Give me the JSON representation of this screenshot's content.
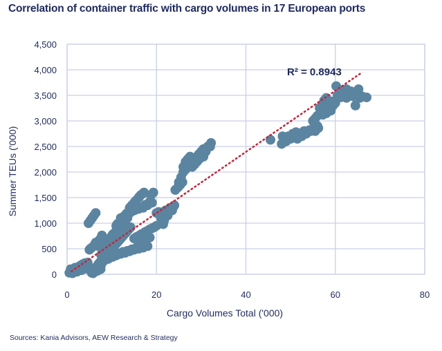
{
  "chart_data": {
    "type": "scatter",
    "title": "Correlation of container traffic with cargo volumes in 17 European ports",
    "xlabel": "Cargo Volumes Total ('000)",
    "ylabel": "Summer TEUs ('000)",
    "xlim": [
      0,
      80
    ],
    "ylim": [
      0,
      4500
    ],
    "xticks": [
      0,
      20,
      40,
      60,
      80
    ],
    "xtick_labels": [
      "0",
      "20",
      "40",
      "60",
      "80"
    ],
    "yticks": [
      0,
      500,
      1000,
      1500,
      2000,
      2500,
      3000,
      3500,
      4000,
      4500
    ],
    "ytick_labels": [
      "0",
      "500",
      "1,000",
      "1,500",
      "2,000",
      "2,500",
      "3,000",
      "3,500",
      "4,000",
      "4,500"
    ],
    "grid": true,
    "r2_label": "R² = 0.8943",
    "trendline": {
      "x": [
        1,
        66
      ],
      "y": [
        60,
        3950
      ]
    },
    "source": "Sources: Kania Advisors, AEW Research & Strategy",
    "colors": {
      "points": "#5b84a0",
      "trendline": "#c0283c",
      "grid": "#c9cfe6",
      "text": "#1f2a5c"
    },
    "series": [
      {
        "x": [
          0.5,
          1,
          1.5,
          2,
          2.5,
          3,
          3.5,
          4,
          1.2,
          2.2,
          3.2,
          4.2,
          5,
          0.8,
          1.8,
          2.8,
          3.8,
          4.6,
          5.5,
          6,
          6.5,
          7,
          7.5,
          5.8,
          6.2,
          6.8,
          7.2,
          5.4,
          6.6,
          7.6,
          5,
          5.5,
          6,
          6.5,
          7,
          7.5,
          8,
          5.2,
          6.4,
          7.8,
          7,
          7.5,
          8,
          8.5,
          9,
          9.5,
          10,
          10.5,
          7.2,
          8.2,
          9.2,
          10.2,
          7.6,
          8.6,
          9.6,
          10,
          10.5,
          11,
          11.5,
          12,
          12.5,
          13,
          13.5,
          14,
          10.2,
          11.2,
          12.2,
          13.2,
          14.2,
          10.8,
          11.8,
          12.8,
          13.8,
          11,
          11.5,
          12,
          12.5,
          13,
          13.5,
          14,
          11.2,
          12.2,
          13.2,
          14.2,
          14,
          14.5,
          15,
          15.5,
          16,
          16.5,
          17,
          14.2,
          15.2,
          16.2,
          17.2,
          8,
          9,
          10,
          11,
          12,
          13,
          14,
          15,
          16,
          17,
          18,
          8.5,
          9.5,
          10.5,
          11.5,
          12.5,
          13.5,
          14.5,
          15.5,
          16.5,
          17.5,
          7,
          8,
          9,
          10,
          11,
          12,
          7.5,
          8.5,
          9.5,
          10.5,
          11.5,
          10,
          10.5,
          11,
          11.5,
          12,
          12.5,
          13,
          13.5,
          10.2,
          11.2,
          12.2,
          13.2,
          16,
          17,
          18,
          16.5,
          17.5,
          18.5,
          16.2,
          17.2,
          18.2,
          4.8,
          5.2,
          5.6,
          6,
          6.4,
          12,
          13,
          14,
          15,
          16,
          17,
          18,
          19,
          12.5,
          13.5,
          14.5,
          15.5,
          16.5,
          17.5,
          18.5,
          18.8,
          19.3,
          15,
          16,
          17,
          18,
          19,
          20,
          15.5,
          16.5,
          17.5,
          18.5,
          19.5,
          20,
          21,
          21.5,
          22,
          22.5,
          23,
          23.5,
          24,
          20.5,
          21.8,
          22.8,
          23.8,
          21.7,
          25,
          25.5,
          26,
          26.5,
          27,
          27.5,
          28,
          28.5,
          29,
          29.5,
          30,
          30.5,
          31,
          26,
          26.5,
          27,
          27.5,
          28,
          28.5,
          29,
          29.5,
          30,
          30.5,
          31,
          31.5,
          27,
          27.5,
          28,
          28.5,
          29,
          29.5,
          30,
          30.5,
          31,
          24.2,
          24.8,
          25.3,
          25.8,
          32,
          32.2,
          45.5,
          48,
          48.5,
          49,
          49.5,
          50,
          50.5,
          51,
          51.5,
          52,
          52.5,
          53,
          53.5,
          54,
          54.5,
          55,
          55.5,
          56,
          48.2,
          49.2,
          50.2,
          51.2,
          52.2,
          53.2,
          54.2,
          55.2,
          56.2,
          55,
          55.5,
          56,
          57,
          57.5,
          58,
          58.5,
          59,
          59.5,
          60,
          57.2,
          58.2,
          59.2,
          56.5,
          57,
          57.5,
          58,
          60.5,
          61,
          61.5,
          62,
          62.5,
          63,
          63.5,
          64,
          64.5,
          65,
          65.5,
          66,
          67,
          61.5,
          62.5,
          63.5,
          64.5,
          60.2,
          61.2,
          62.2,
          63.2,
          64.2,
          65.2
        ],
        "y": [
          30,
          60,
          90,
          120,
          140,
          170,
          200,
          220,
          20,
          50,
          80,
          110,
          140,
          100,
          130,
          160,
          190,
          230,
          30,
          40,
          60,
          80,
          100,
          20,
          50,
          70,
          90,
          120,
          150,
          180,
          480,
          520,
          560,
          600,
          650,
          700,
          730,
          500,
          620,
          760,
          200,
          250,
          280,
          300,
          320,
          350,
          380,
          400,
          220,
          260,
          300,
          340,
          380,
          420,
          460,
          500,
          550,
          600,
          650,
          700,
          750,
          800,
          850,
          900,
          520,
          620,
          720,
          820,
          920,
          580,
          680,
          780,
          880,
          950,
          1000,
          1050,
          1100,
          1150,
          1200,
          1250,
          980,
          1080,
          1180,
          1280,
          1300,
          1350,
          1400,
          1450,
          1500,
          1550,
          1580,
          1320,
          1420,
          1520,
          1600,
          300,
          320,
          350,
          370,
          400,
          420,
          450,
          480,
          500,
          520,
          550,
          340,
          360,
          390,
          410,
          440,
          460,
          490,
          520,
          540,
          570,
          550,
          600,
          650,
          700,
          750,
          800,
          580,
          620,
          680,
          720,
          780,
          750,
          800,
          850,
          900,
          950,
          1000,
          1050,
          1100,
          780,
          880,
          980,
          1080,
          600,
          650,
          700,
          620,
          680,
          720,
          640,
          690,
          740,
          1000,
          1050,
          1100,
          1150,
          1200,
          1100,
          1150,
          1200,
          1250,
          1280,
          1300,
          1350,
          1400,
          1120,
          1180,
          1230,
          1270,
          1310,
          1360,
          1420,
          1550,
          1600,
          700,
          750,
          800,
          850,
          900,
          950,
          730,
          780,
          830,
          880,
          920,
          1200,
          1100,
          980,
          1250,
          1150,
          1300,
          1250,
          1350,
          1220,
          1170,
          1270,
          1320,
          1050,
          1800,
          1900,
          2000,
          2050,
          2100,
          2150,
          2100,
          2150,
          2200,
          2250,
          2300,
          2350,
          2400,
          2100,
          2200,
          2250,
          2300,
          2150,
          2250,
          2300,
          2350,
          2400,
          2450,
          2450,
          2500,
          2250,
          2300,
          2200,
          2150,
          2200,
          2250,
          2350,
          2300,
          2400,
          1650,
          1700,
          1750,
          1800,
          2500,
          2570,
          2630,
          2550,
          2650,
          2600,
          2700,
          2650,
          2750,
          2700,
          2650,
          2750,
          2700,
          2800,
          2750,
          2800,
          2800,
          2850,
          2800,
          2900,
          2700,
          2680,
          2720,
          2780,
          2760,
          2800,
          2820,
          2830,
          2860,
          3000,
          3050,
          3100,
          3150,
          3200,
          3150,
          3250,
          3200,
          3300,
          3350,
          3120,
          3220,
          3380,
          3250,
          3300,
          3400,
          3450,
          3500,
          3550,
          3520,
          3480,
          3450,
          3500,
          3520,
          3480,
          3550,
          3500,
          3450,
          3480,
          3460,
          3600,
          3620,
          3580,
          3300,
          3680,
          3460,
          3470,
          3520,
          3560,
          3620
        ]
      }
    ]
  }
}
